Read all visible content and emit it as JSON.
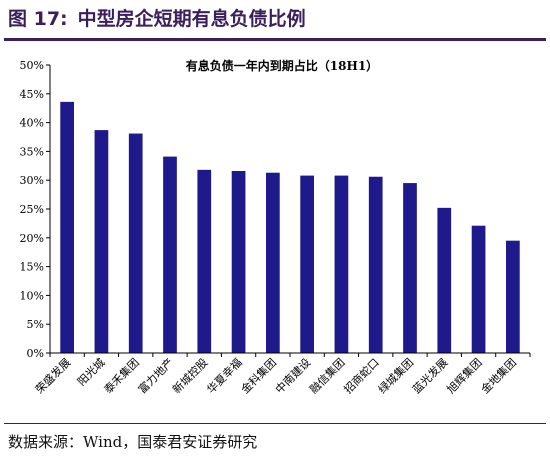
{
  "figure": {
    "label": "图 17:",
    "title": "中型房企短期有息负债比例"
  },
  "source": "数据来源：Wind，国泰君安证券研究",
  "chart_data": {
    "type": "bar",
    "title": "有息负债一年内到期占比（18H1）",
    "categories": [
      "荣盛发展",
      "阳光城",
      "泰禾集团",
      "富力地产",
      "新城控股",
      "华夏幸福",
      "金科集团",
      "中南建设",
      "融信集团",
      "招商蛇口",
      "绿城集团",
      "蓝光发展",
      "旭辉集团",
      "金地集团"
    ],
    "values": [
      43.6,
      38.7,
      38.1,
      34.1,
      31.8,
      31.6,
      31.3,
      30.8,
      30.8,
      30.6,
      29.5,
      25.2,
      22.1,
      19.5
    ],
    "ylim": [
      0,
      50
    ],
    "yticks": [
      "0%",
      "5%",
      "10%",
      "15%",
      "20%",
      "25%",
      "30%",
      "35%",
      "40%",
      "45%",
      "50%"
    ],
    "xlabel": "",
    "ylabel": "",
    "grid": false,
    "bar_color": "#1f1a8c"
  }
}
